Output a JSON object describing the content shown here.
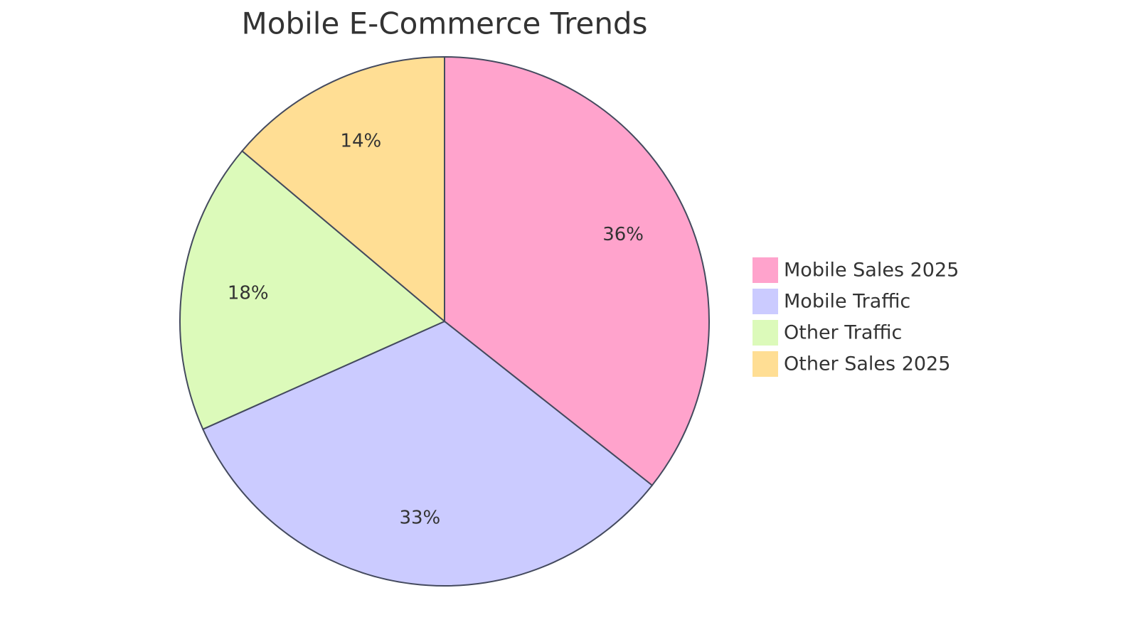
{
  "chart_data": {
    "type": "pie",
    "title": "Mobile E-Commerce Trends",
    "categories": [
      "Mobile Sales 2025",
      "Mobile Traffic",
      "Other Traffic",
      "Other Sales 2025"
    ],
    "values": [
      36,
      33,
      18,
      14
    ],
    "value_labels": [
      "36%",
      "33%",
      "18%",
      "14%"
    ],
    "colors": [
      "#ffa3cc",
      "#cbcbff",
      "#dcfaba",
      "#ffde94"
    ],
    "legend": "right"
  }
}
